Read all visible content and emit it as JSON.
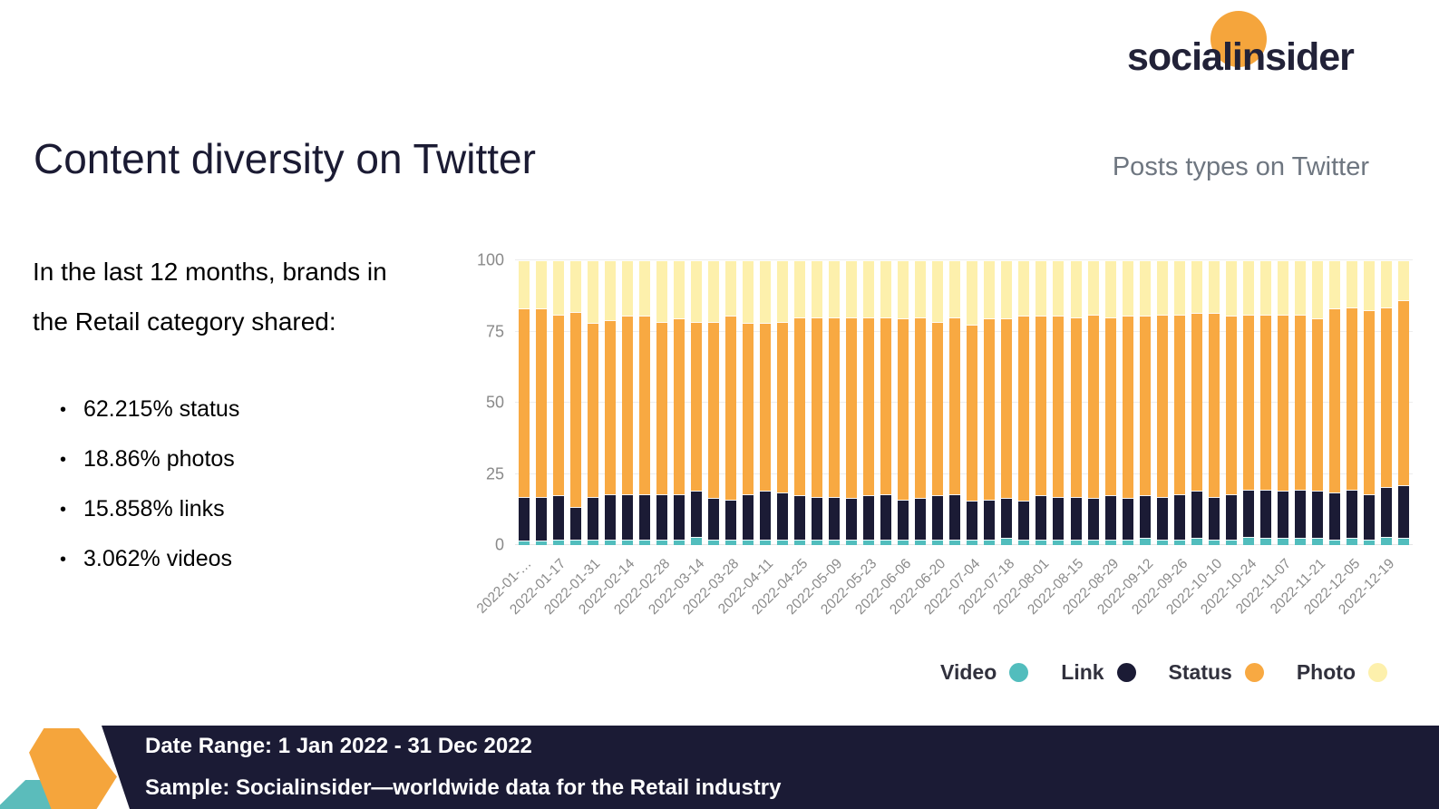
{
  "logo": {
    "text": "socialinsider",
    "accent_color": "#F5A53C"
  },
  "header": {
    "title": "Content diversity on Twitter",
    "subtitle": "Posts types on Twitter"
  },
  "intro": {
    "lines": [
      "In the last 12 months, brands in",
      "the Retail category shared:"
    ]
  },
  "bullets": [
    "62.215% status",
    "18.86% photos",
    "15.858% links",
    "3.062% videos"
  ],
  "chart_data": {
    "type": "bar",
    "stacked": true,
    "bar_count": 52,
    "ylim": [
      0,
      100
    ],
    "y_ticks": [
      0,
      25,
      50,
      75,
      100
    ],
    "grid": "horizontal",
    "legend_position": "bottom-right",
    "x_tick_labels": [
      "2022-01-…",
      "2022-01-17",
      "2022-01-31",
      "2022-02-14",
      "2022-02-28",
      "2022-03-14",
      "2022-03-28",
      "2022-04-11",
      "2022-04-25",
      "2022-05-09",
      "2022-05-23",
      "2022-06-06",
      "2022-06-20",
      "2022-07-04",
      "2022-07-18",
      "2022-08-01",
      "2022-08-15",
      "2022-08-29",
      "2022-09-12",
      "2022-09-26",
      "2022-10-10",
      "2022-10-24",
      "2022-11-07",
      "2022-11-21",
      "2022-12-05",
      "2022-12-19"
    ],
    "x_tick_every": 2,
    "series": [
      {
        "name": "Video",
        "color": "#52BDBD",
        "values": [
          1.5,
          1.5,
          2,
          2,
          2,
          2,
          2,
          2,
          2,
          2,
          3,
          2,
          2,
          2,
          2,
          2,
          2,
          2,
          2,
          2,
          2,
          2,
          2,
          2,
          2,
          2,
          2,
          2,
          2.5,
          2,
          2,
          2,
          2,
          2,
          2,
          2,
          2.5,
          2,
          2,
          2.5,
          2,
          2,
          3,
          2.5,
          2.5,
          2.5,
          2.5,
          2,
          2.5,
          2,
          3,
          2.5
        ]
      },
      {
        "name": "Link",
        "color": "#1B1B35",
        "values": [
          15.5,
          15.5,
          15.5,
          11.5,
          15,
          16,
          16,
          16,
          16,
          16,
          16,
          14.5,
          14,
          16,
          17,
          16.5,
          15.5,
          15,
          15,
          14.5,
          15.5,
          16,
          14,
          14.5,
          15.5,
          16,
          13.5,
          14,
          14,
          13.5,
          15.5,
          15,
          15,
          14.5,
          15.5,
          14.5,
          15,
          15,
          16,
          16.5,
          15,
          16,
          16.5,
          17,
          16.5,
          17,
          16.5,
          16.5,
          17,
          16,
          17.5,
          18.5
        ]
      },
      {
        "name": "Status",
        "color": "#F8A942",
        "values": [
          66,
          66,
          63.5,
          68.5,
          61,
          61,
          62.5,
          62.5,
          60.5,
          61.5,
          59.5,
          62,
          64.5,
          60,
          59,
          60,
          62.5,
          63,
          63,
          63.5,
          62.5,
          62,
          63.5,
          63.5,
          61,
          62,
          62,
          63.5,
          63,
          65,
          63,
          63.5,
          63,
          64.5,
          62.5,
          64,
          63,
          64,
          63,
          62.5,
          64.5,
          62.5,
          61.5,
          61.5,
          62,
          61.5,
          60.5,
          64.5,
          64,
          64.5,
          63,
          65
        ]
      },
      {
        "name": "Photo",
        "color": "#FDF0AC",
        "values": [
          17,
          17,
          19,
          18,
          22,
          21,
          19.5,
          19.5,
          21.5,
          20.5,
          21.5,
          21.5,
          19.5,
          22,
          22,
          21.5,
          20,
          20,
          20,
          20,
          20,
          20,
          20.5,
          20,
          21.5,
          20,
          22.5,
          20.5,
          20.5,
          19.5,
          19.5,
          19.5,
          20,
          19,
          20,
          19.5,
          19.5,
          19,
          19,
          18.5,
          18.5,
          19.5,
          19,
          19,
          19,
          19,
          20.5,
          17,
          16.5,
          17.5,
          16.5,
          14
        ]
      }
    ]
  },
  "footer": {
    "line1": "Date Range: 1 Jan 2022 - 31 Dec 2022",
    "line2": "Sample: Socialinsider—worldwide data for the Retail industry"
  }
}
